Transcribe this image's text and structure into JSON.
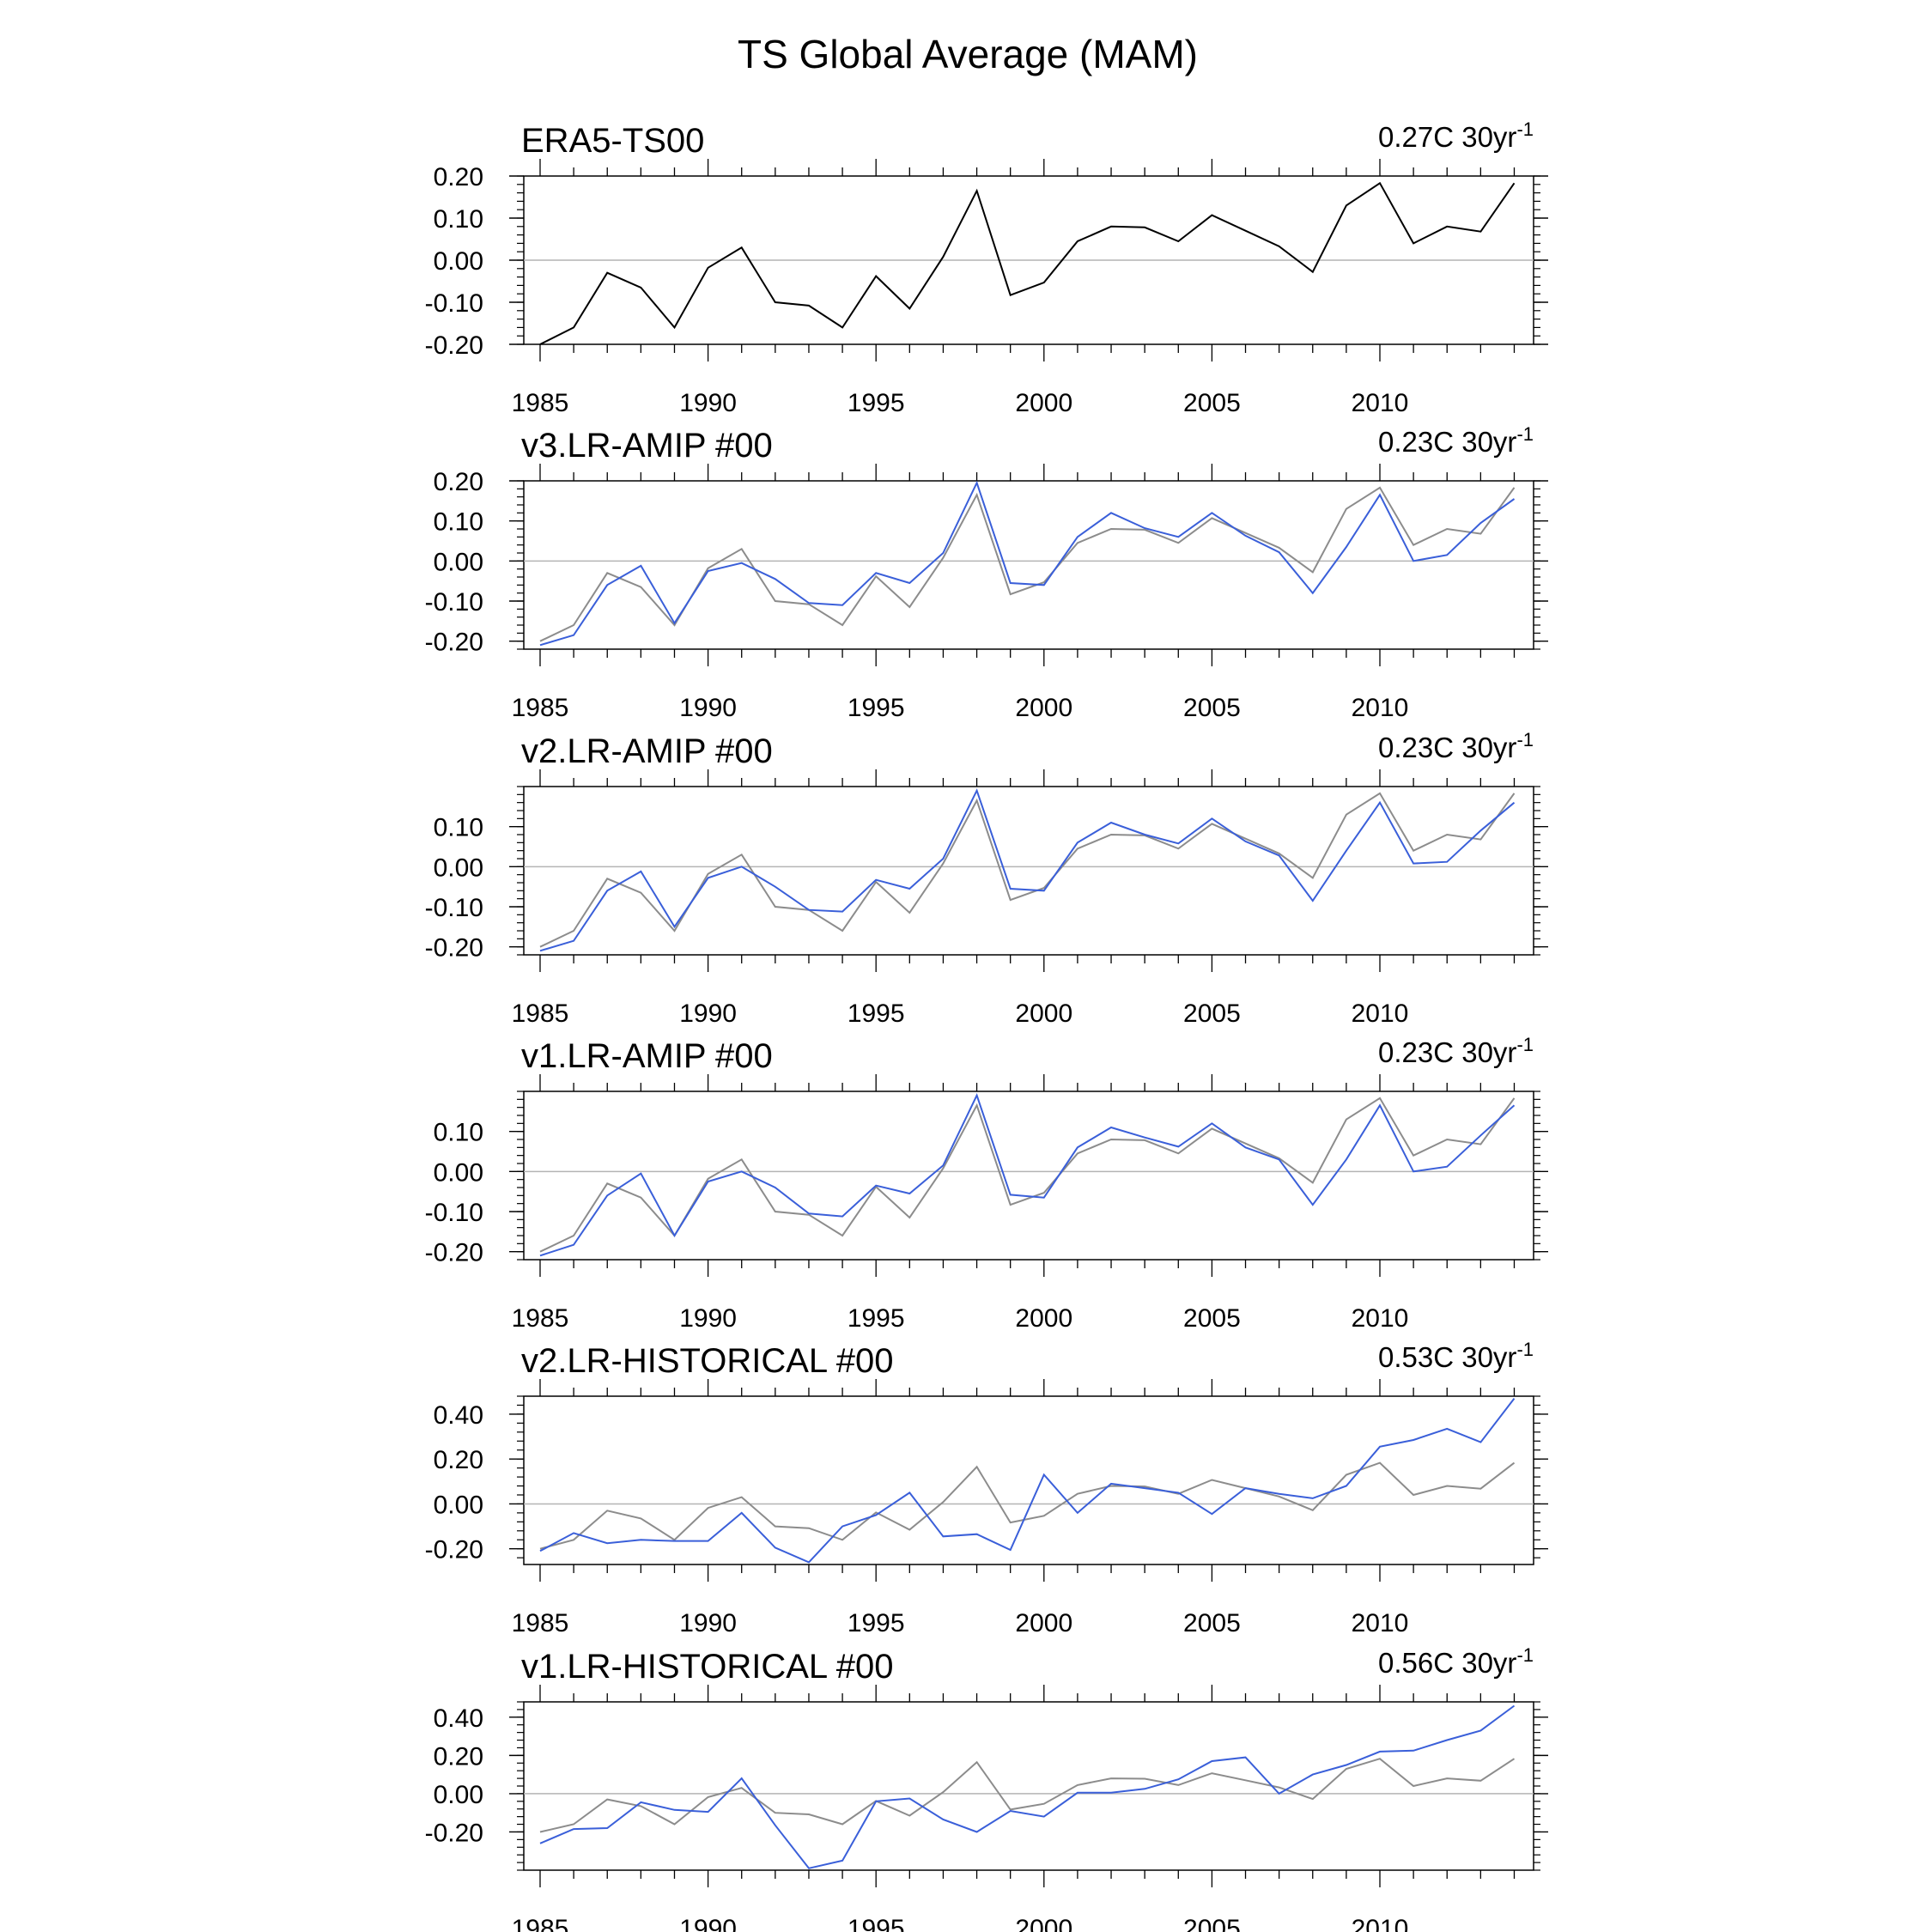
{
  "figure": {
    "title": "TS Global Average (MAM)"
  },
  "style": {
    "obs_color": "#000000",
    "obs_overlay_color": "#8c8c8c",
    "model_color": "#3a5fd9",
    "zero_line_color": "#b4b4b4"
  },
  "chart_data": [
    {
      "type": "line",
      "panel_title": "ERA5-TS00",
      "trend_value": "0.27C 30yr",
      "trend_sup": "-1",
      "x": [
        1985,
        1986,
        1987,
        1988,
        1989,
        1990,
        1991,
        1992,
        1993,
        1994,
        1995,
        1996,
        1997,
        1998,
        1999,
        2000,
        2001,
        2002,
        2003,
        2004,
        2005,
        2006,
        2007,
        2008,
        2009,
        2010,
        2011,
        2012,
        2013,
        2014
      ],
      "xticks": [
        1985,
        1990,
        1995,
        2000,
        2005,
        2010
      ],
      "ylim": [
        -0.2,
        0.2
      ],
      "yticks": [
        "0.20",
        "0.10",
        "0.00",
        "-0.10",
        "-0.20"
      ],
      "series": [
        {
          "values": [
            -0.2,
            -0.16,
            -0.03,
            -0.065,
            -0.16,
            -0.018,
            0.03,
            -0.1,
            -0.108,
            -0.16,
            -0.038,
            -0.115,
            0.008,
            0.165,
            -0.083,
            -0.053,
            0.045,
            0.08,
            0.078,
            0.045,
            0.107,
            0.07,
            0.033,
            -0.028,
            0.13,
            0.183,
            0.04,
            0.08,
            0.068,
            0.183
          ]
        }
      ]
    },
    {
      "type": "line",
      "panel_title": "v3.LR-AMIP  #00",
      "trend_value": "0.23C 30yr",
      "trend_sup": "-1",
      "x": [
        1985,
        1986,
        1987,
        1988,
        1989,
        1990,
        1991,
        1992,
        1993,
        1994,
        1995,
        1996,
        1997,
        1998,
        1999,
        2000,
        2001,
        2002,
        2003,
        2004,
        2005,
        2006,
        2007,
        2008,
        2009,
        2010,
        2011,
        2012,
        2013,
        2014
      ],
      "xticks": [
        1985,
        1990,
        1995,
        2000,
        2005,
        2010
      ],
      "ylim": [
        -0.22,
        0.2
      ],
      "yticks": [
        "0.20",
        "0.10",
        "0.00",
        "-0.10",
        "-0.20"
      ],
      "series": [
        {
          "values": [
            -0.2,
            -0.16,
            -0.03,
            -0.065,
            -0.16,
            -0.018,
            0.03,
            -0.1,
            -0.108,
            -0.16,
            -0.038,
            -0.115,
            0.008,
            0.165,
            -0.083,
            -0.053,
            0.045,
            0.08,
            0.078,
            0.045,
            0.107,
            0.07,
            0.033,
            -0.028,
            0.13,
            0.183,
            0.04,
            0.08,
            0.068,
            0.183
          ]
        },
        {
          "values": [
            -0.21,
            -0.185,
            -0.06,
            -0.012,
            -0.155,
            -0.025,
            -0.005,
            -0.045,
            -0.105,
            -0.11,
            -0.03,
            -0.055,
            0.02,
            0.195,
            -0.055,
            -0.06,
            0.06,
            0.12,
            0.082,
            0.06,
            0.12,
            0.063,
            0.022,
            -0.08,
            0.035,
            0.165,
            0.0,
            0.015,
            0.095,
            0.155
          ]
        }
      ]
    },
    {
      "type": "line",
      "panel_title": "v2.LR-AMIP  #00",
      "trend_value": "0.23C 30yr",
      "trend_sup": "-1",
      "x": [
        1985,
        1986,
        1987,
        1988,
        1989,
        1990,
        1991,
        1992,
        1993,
        1994,
        1995,
        1996,
        1997,
        1998,
        1999,
        2000,
        2001,
        2002,
        2003,
        2004,
        2005,
        2006,
        2007,
        2008,
        2009,
        2010,
        2011,
        2012,
        2013,
        2014
      ],
      "xticks": [
        1985,
        1990,
        1995,
        2000,
        2005,
        2010
      ],
      "ylim": [
        -0.22,
        0.2
      ],
      "yticks": [
        "0.10",
        "0.00",
        "-0.10",
        "-0.20"
      ],
      "series": [
        {
          "values": [
            -0.2,
            -0.16,
            -0.03,
            -0.065,
            -0.16,
            -0.018,
            0.03,
            -0.1,
            -0.108,
            -0.16,
            -0.038,
            -0.115,
            0.008,
            0.165,
            -0.083,
            -0.053,
            0.045,
            0.08,
            0.078,
            0.045,
            0.107,
            0.07,
            0.033,
            -0.028,
            0.13,
            0.183,
            0.04,
            0.08,
            0.068,
            0.183
          ]
        },
        {
          "values": [
            -0.21,
            -0.185,
            -0.06,
            -0.012,
            -0.15,
            -0.028,
            0.0,
            -0.05,
            -0.108,
            -0.112,
            -0.033,
            -0.055,
            0.02,
            0.19,
            -0.055,
            -0.06,
            0.06,
            0.11,
            0.08,
            0.058,
            0.12,
            0.063,
            0.028,
            -0.085,
            0.04,
            0.16,
            0.008,
            0.012,
            0.09,
            0.16
          ]
        }
      ]
    },
    {
      "type": "line",
      "panel_title": "v1.LR-AMIP  #00",
      "trend_value": "0.23C 30yr",
      "trend_sup": "-1",
      "x": [
        1985,
        1986,
        1987,
        1988,
        1989,
        1990,
        1991,
        1992,
        1993,
        1994,
        1995,
        1996,
        1997,
        1998,
        1999,
        2000,
        2001,
        2002,
        2003,
        2004,
        2005,
        2006,
        2007,
        2008,
        2009,
        2010,
        2011,
        2012,
        2013,
        2014
      ],
      "xticks": [
        1985,
        1990,
        1995,
        2000,
        2005,
        2010
      ],
      "ylim": [
        -0.22,
        0.2
      ],
      "yticks": [
        "0.10",
        "0.00",
        "-0.10",
        "-0.20"
      ],
      "series": [
        {
          "values": [
            -0.2,
            -0.16,
            -0.03,
            -0.065,
            -0.16,
            -0.018,
            0.03,
            -0.1,
            -0.108,
            -0.16,
            -0.038,
            -0.115,
            0.008,
            0.165,
            -0.083,
            -0.053,
            0.045,
            0.08,
            0.078,
            0.045,
            0.107,
            0.07,
            0.033,
            -0.028,
            0.13,
            0.183,
            0.04,
            0.08,
            0.068,
            0.183
          ]
        },
        {
          "values": [
            -0.21,
            -0.183,
            -0.06,
            -0.005,
            -0.16,
            -0.025,
            0.0,
            -0.04,
            -0.105,
            -0.112,
            -0.035,
            -0.055,
            0.015,
            0.19,
            -0.058,
            -0.065,
            0.06,
            0.11,
            0.085,
            0.062,
            0.12,
            0.06,
            0.03,
            -0.083,
            0.03,
            0.165,
            0.0,
            0.012,
            0.09,
            0.165
          ]
        }
      ]
    },
    {
      "type": "line",
      "panel_title": "v2.LR-HISTORICAL  #00",
      "trend_value": "0.53C 30yr",
      "trend_sup": "-1",
      "x": [
        1985,
        1986,
        1987,
        1988,
        1989,
        1990,
        1991,
        1992,
        1993,
        1994,
        1995,
        1996,
        1997,
        1998,
        1999,
        2000,
        2001,
        2002,
        2003,
        2004,
        2005,
        2006,
        2007,
        2008,
        2009,
        2010,
        2011,
        2012,
        2013,
        2014
      ],
      "xticks": [
        1985,
        1990,
        1995,
        2000,
        2005,
        2010
      ],
      "ylim": [
        -0.27,
        0.48
      ],
      "yticks": [
        "0.40",
        "0.20",
        "0.00",
        "-0.20"
      ],
      "series": [
        {
          "values": [
            -0.2,
            -0.16,
            -0.03,
            -0.065,
            -0.16,
            -0.018,
            0.03,
            -0.1,
            -0.108,
            -0.16,
            -0.038,
            -0.115,
            0.008,
            0.165,
            -0.083,
            -0.053,
            0.045,
            0.08,
            0.078,
            0.045,
            0.107,
            0.07,
            0.033,
            -0.028,
            0.13,
            0.183,
            0.04,
            0.08,
            0.068,
            0.183
          ]
        },
        {
          "values": [
            -0.21,
            -0.13,
            -0.175,
            -0.16,
            -0.165,
            -0.165,
            -0.04,
            -0.195,
            -0.26,
            -0.1,
            -0.05,
            0.05,
            -0.145,
            -0.135,
            -0.205,
            0.13,
            -0.04,
            0.09,
            0.07,
            0.05,
            -0.045,
            0.07,
            0.045,
            0.025,
            0.08,
            0.255,
            0.285,
            0.335,
            0.275,
            0.47
          ]
        }
      ]
    },
    {
      "type": "line",
      "panel_title": "v1.LR-HISTORICAL  #00",
      "trend_value": "0.56C 30yr",
      "trend_sup": "-1",
      "x": [
        1985,
        1986,
        1987,
        1988,
        1989,
        1990,
        1991,
        1992,
        1993,
        1994,
        1995,
        1996,
        1997,
        1998,
        1999,
        2000,
        2001,
        2002,
        2003,
        2004,
        2005,
        2006,
        2007,
        2008,
        2009,
        2010,
        2011,
        2012,
        2013,
        2014
      ],
      "xticks": [
        1985,
        1990,
        1995,
        2000,
        2005,
        2010
      ],
      "ylim": [
        -0.4,
        0.48
      ],
      "yticks": [
        "0.40",
        "0.20",
        "0.00",
        "-0.20"
      ],
      "series": [
        {
          "values": [
            -0.2,
            -0.16,
            -0.03,
            -0.065,
            -0.16,
            -0.018,
            0.03,
            -0.1,
            -0.108,
            -0.16,
            -0.038,
            -0.115,
            0.008,
            0.165,
            -0.083,
            -0.053,
            0.045,
            0.08,
            0.078,
            0.045,
            0.107,
            0.07,
            0.033,
            -0.028,
            0.13,
            0.183,
            0.04,
            0.08,
            0.068,
            0.183
          ]
        },
        {
          "values": [
            -0.26,
            -0.185,
            -0.18,
            -0.045,
            -0.085,
            -0.095,
            0.08,
            -0.165,
            -0.39,
            -0.35,
            -0.04,
            -0.025,
            -0.135,
            -0.2,
            -0.09,
            -0.12,
            0.005,
            0.005,
            0.025,
            0.075,
            0.17,
            0.19,
            0.0,
            0.1,
            0.15,
            0.22,
            0.225,
            0.28,
            0.33,
            0.46
          ]
        }
      ]
    }
  ]
}
